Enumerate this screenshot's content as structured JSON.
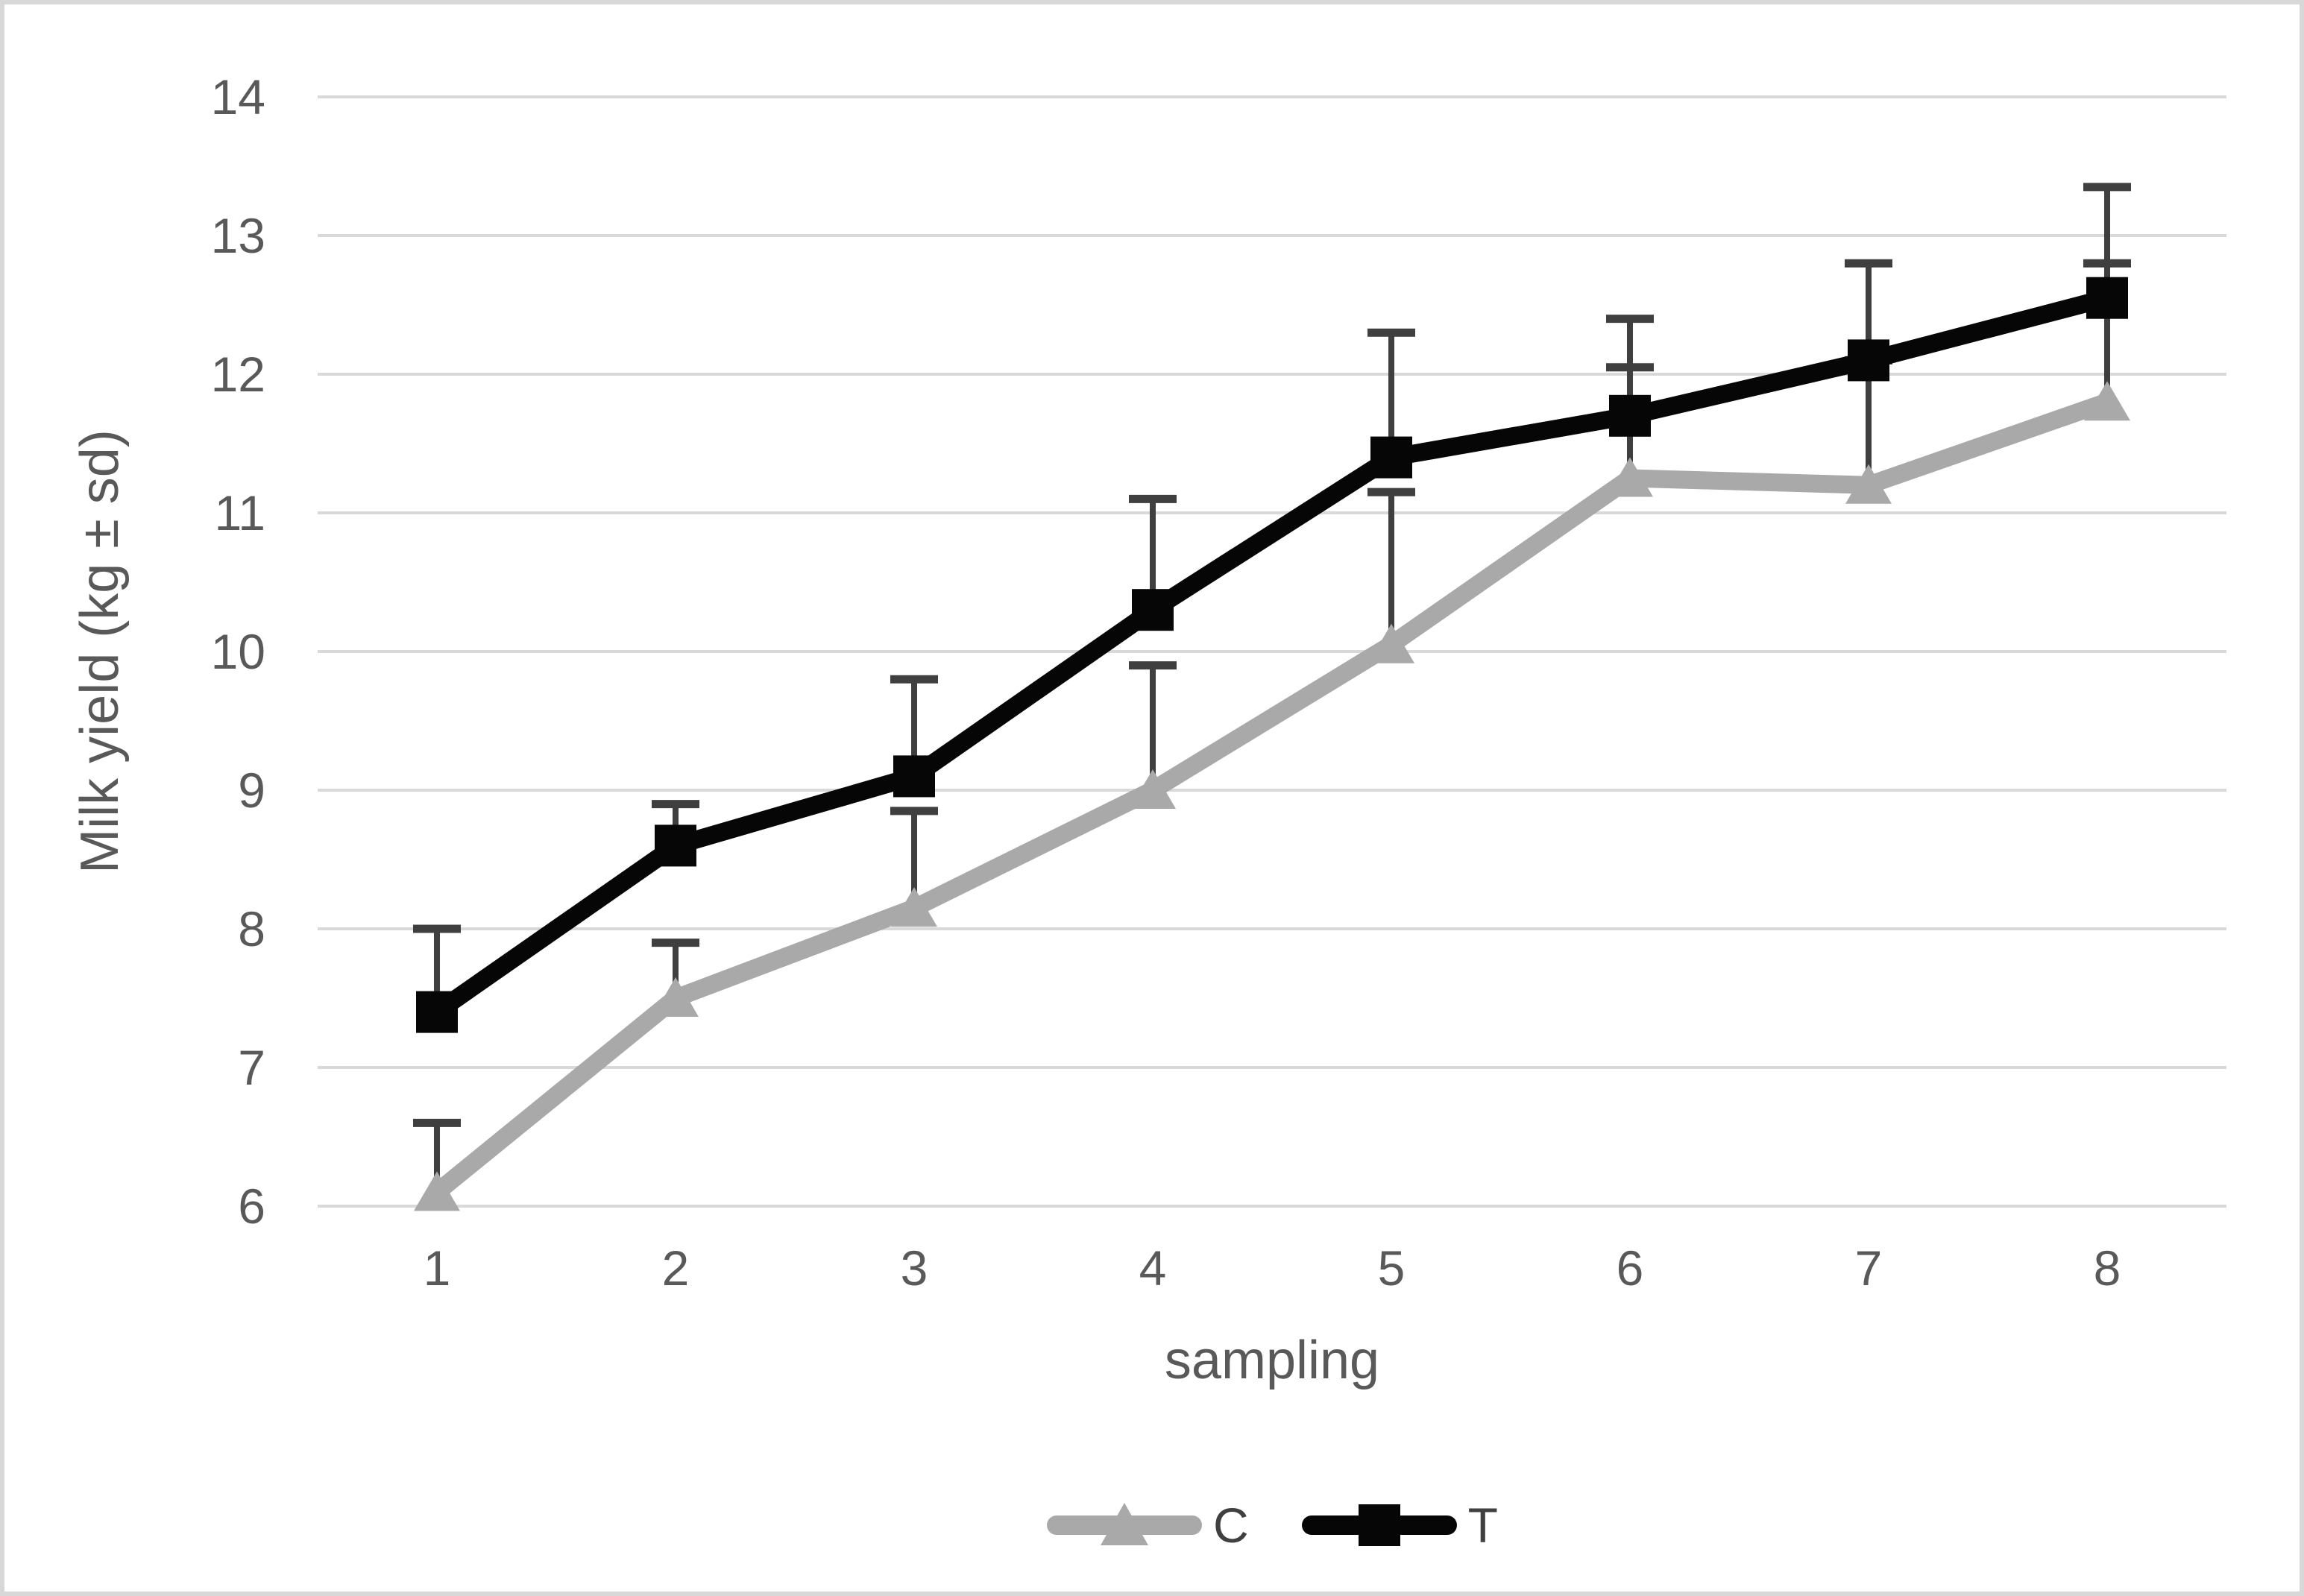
{
  "chart_data": {
    "type": "line",
    "title": "",
    "xlabel": "sampling",
    "ylabel": "Milk yield (kg ± sd)",
    "x_categories": [
      "1",
      "2",
      "3",
      "4",
      "5",
      "6",
      "7",
      "8"
    ],
    "yticks": [
      6,
      7,
      8,
      9,
      10,
      11,
      12,
      13,
      14
    ],
    "ylim": [
      6,
      14
    ],
    "grid": "horizontal-only",
    "legend_position": "bottom-center",
    "error_bars": "upper-only-with-caps",
    "series": [
      {
        "name": "C",
        "marker": "triangle",
        "color": "#a9a9a9",
        "values": [
          6.1,
          7.5,
          8.15,
          9.0,
          10.05,
          11.25,
          11.2,
          11.8
        ],
        "error_plus": [
          0.5,
          0.4,
          0.7,
          0.9,
          1.1,
          0.8,
          0.9,
          1.0
        ]
      },
      {
        "name": "T",
        "marker": "square",
        "color": "#060606",
        "values": [
          7.4,
          8.6,
          9.1,
          10.3,
          11.4,
          11.7,
          12.1,
          12.55
        ],
        "error_plus": [
          0.6,
          0.3,
          0.7,
          0.8,
          0.9,
          0.7,
          0.7,
          0.8
        ]
      }
    ]
  },
  "style": {
    "background": "#ffffff",
    "frame_border": "#d8d8d8",
    "gridline": "#d9d9d9",
    "axis_text": "#595959",
    "error_bar": "#3f3f3f"
  }
}
